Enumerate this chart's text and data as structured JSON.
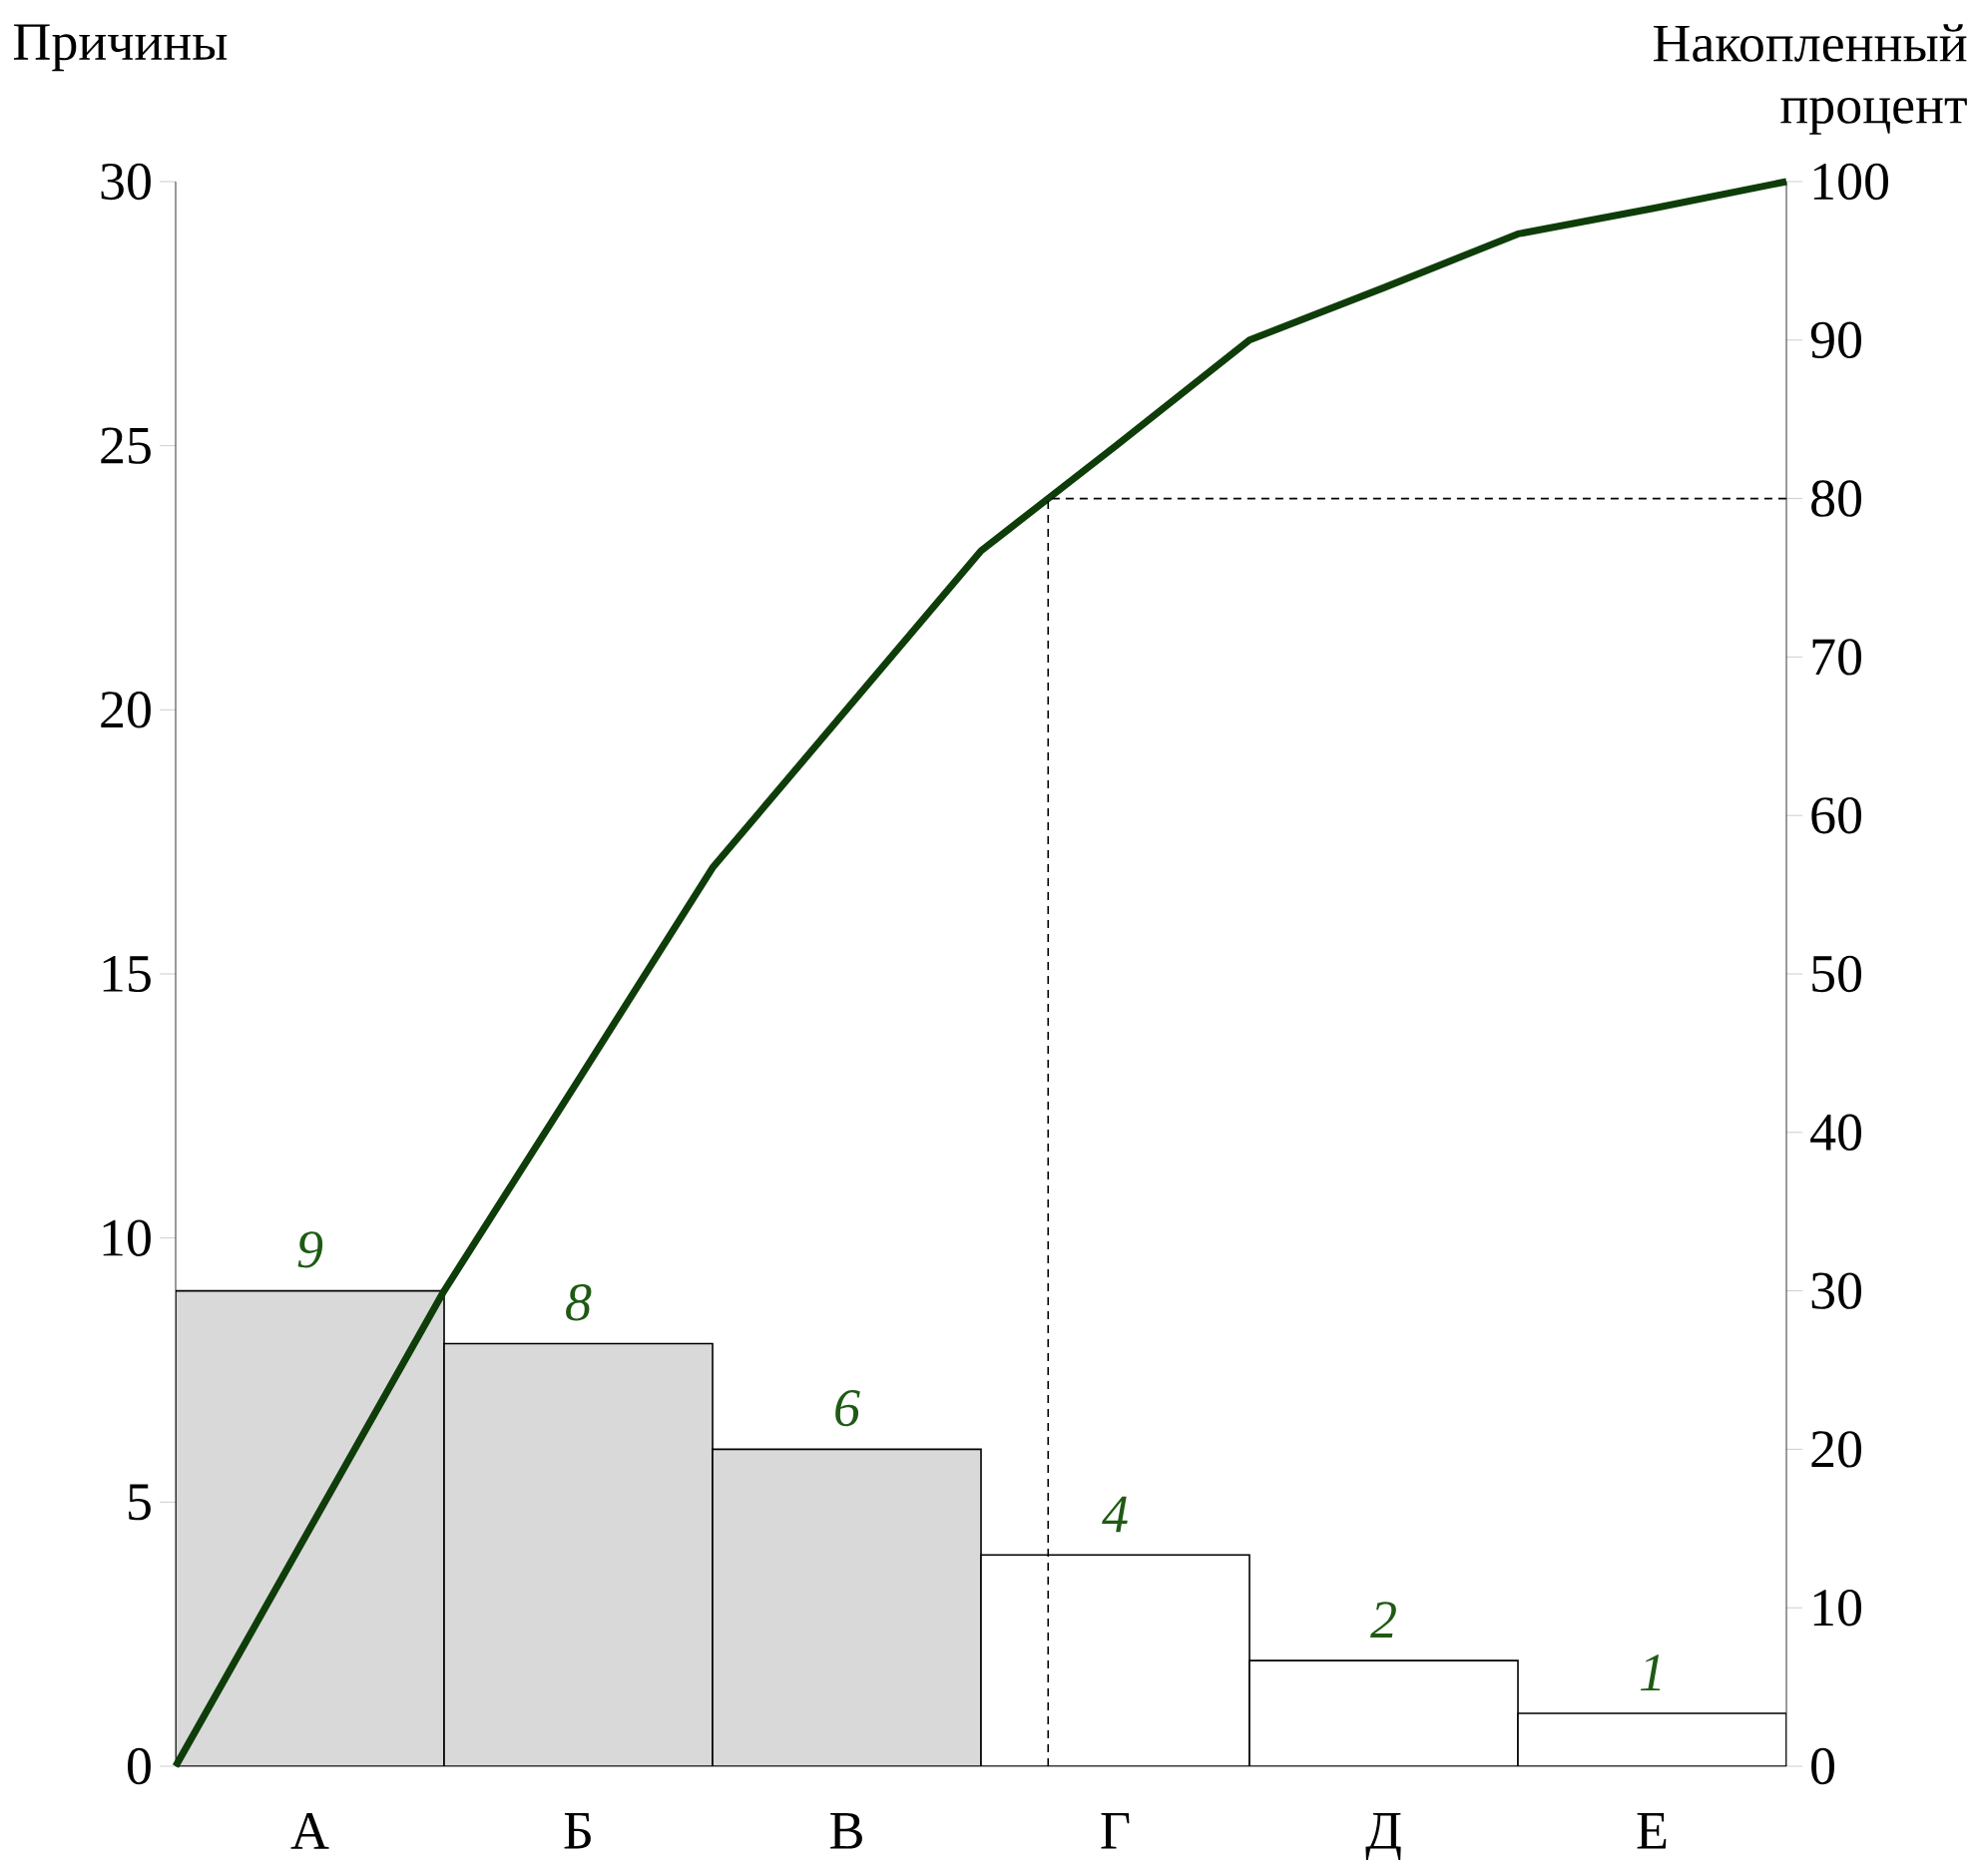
{
  "chart_data": {
    "type": "bar",
    "ylabel": "Причины",
    "y2label": "Накопленный процент",
    "categories": [
      null,
      "А",
      null,
      "Б",
      null,
      "В",
      null,
      "Г",
      null,
      "Д",
      null,
      "Е",
      null
    ],
    "ylim": [
      0,
      30
    ],
    "yticks": [
      0,
      5,
      10,
      15,
      20,
      25,
      30
    ],
    "y2lim": [
      0,
      100
    ],
    "y2ticks": [
      0,
      10,
      20,
      30,
      40,
      50,
      60,
      70,
      80,
      90,
      100
    ],
    "grid": false,
    "series": [
      {
        "values": [
          null,
          9,
          null,
          8,
          null,
          6,
          null,
          4,
          null,
          2,
          null,
          1,
          null
        ],
        "value_labels": [
          null,
          "9",
          null,
          "8",
          null,
          "6",
          null,
          "4",
          null,
          "2",
          null,
          "1",
          null
        ],
        "colors": [
          null,
          "#d9d9d9",
          null,
          "#d9d9d9",
          null,
          "#d9d9d9",
          null,
          "#ffffff",
          null,
          "#ffffff",
          null,
          "#ffffff",
          null
        ]
      },
      {
        "type": "line",
        "axis": "y2",
        "color": "#0f3d0a",
        "line_style": "solid",
        "values": [
          0,
          15,
          30,
          43.3,
          56.7,
          66.7,
          76.7,
          83.3,
          90,
          93.3,
          96.7,
          98.3,
          100
        ]
      }
    ],
    "ref_lines": [
      {
        "axis": "y2",
        "value": 80,
        "color": "#000000",
        "line_style": "dashed"
      }
    ]
  }
}
